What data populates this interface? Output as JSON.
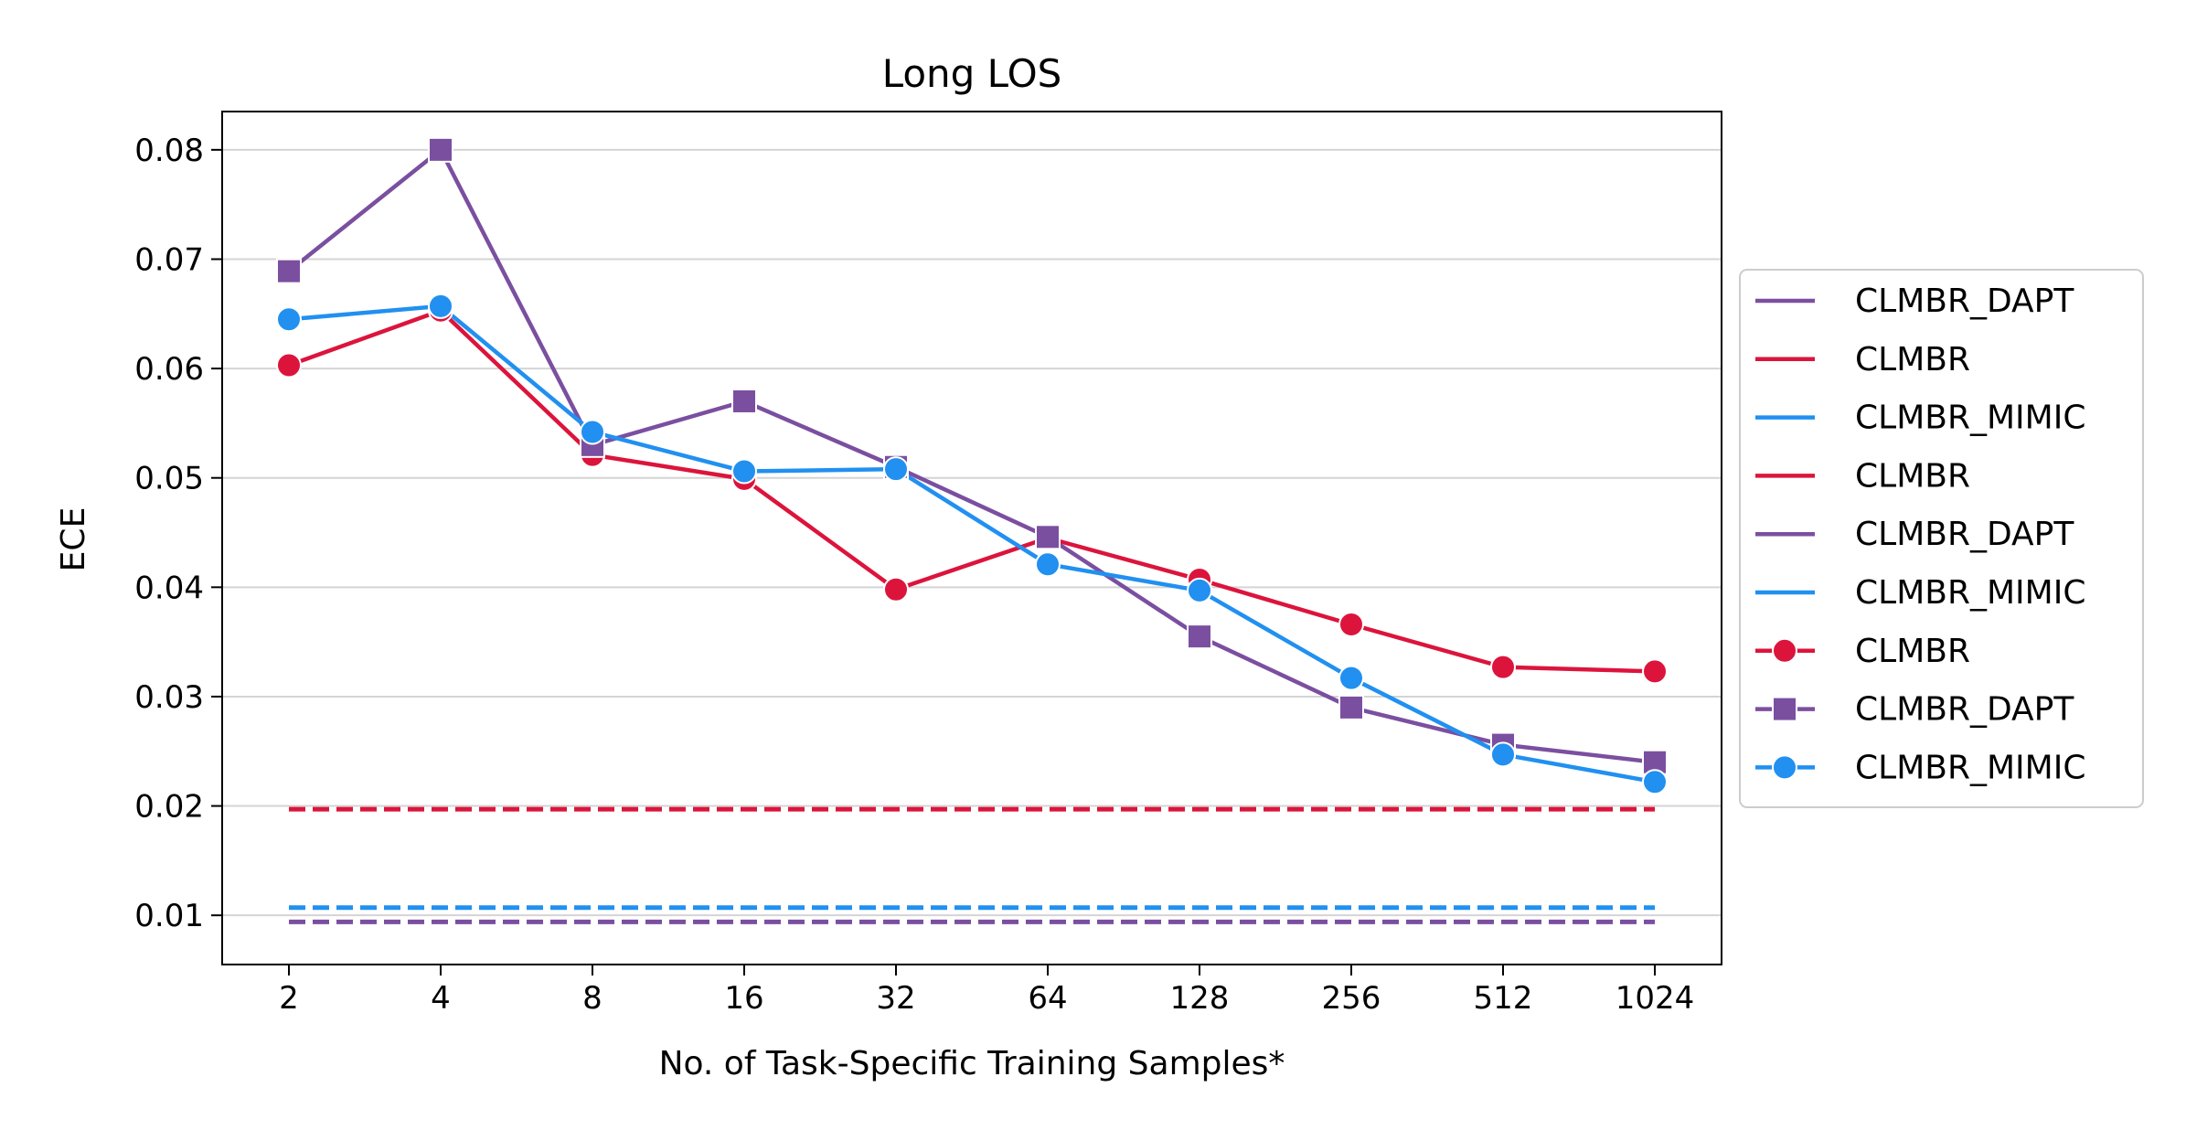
{
  "chart_data": {
    "type": "line",
    "title": "Long LOS",
    "xlabel": "No. of Task-Specific Training Samples*",
    "ylabel": "ECE",
    "x": [
      "2",
      "4",
      "8",
      "16",
      "32",
      "64",
      "128",
      "256",
      "512",
      "1024"
    ],
    "ylim": [
      0.0055,
      0.0835
    ],
    "yticks": [
      0.01,
      0.02,
      0.03,
      0.04,
      0.05,
      0.06,
      0.07,
      0.08
    ],
    "ytick_labels": [
      "0.01",
      "0.02",
      "0.03",
      "0.04",
      "0.05",
      "0.06",
      "0.07",
      "0.08"
    ],
    "grid": "horizontal",
    "legend_position": "outside-right",
    "colors": {
      "CLMBR": "#dc143c",
      "CLMBR_DAPT": "#7b4fa0",
      "CLMBR_MIMIC": "#2190f0"
    },
    "baselines": [
      {
        "name": "CLMBR_DAPT",
        "value": 0.0094
      },
      {
        "name": "CLMBR",
        "value": 0.0197
      },
      {
        "name": "CLMBR_MIMIC",
        "value": 0.0107
      }
    ],
    "series": [
      {
        "name": "CLMBR",
        "marker": "circle",
        "values": [
          0.0603,
          0.0653,
          0.0521,
          0.0499,
          0.0398,
          0.0445,
          0.0407,
          0.0366,
          0.0327,
          0.0323
        ]
      },
      {
        "name": "CLMBR_DAPT",
        "marker": "square",
        "values": [
          0.0689,
          0.08,
          0.053,
          0.057,
          0.051,
          0.0446,
          0.0355,
          0.029,
          0.0256,
          0.024
        ]
      },
      {
        "name": "CLMBR_MIMIC",
        "marker": "circle",
        "values": [
          0.0645,
          0.0657,
          0.0542,
          0.0506,
          0.0508,
          0.0421,
          0.0397,
          0.0317,
          0.0247,
          0.0222
        ]
      }
    ],
    "legend": [
      {
        "label": "CLMBR_DAPT",
        "style": "line",
        "color_key": "CLMBR_DAPT"
      },
      {
        "label": "CLMBR",
        "style": "line",
        "color_key": "CLMBR"
      },
      {
        "label": "CLMBR_MIMIC",
        "style": "line",
        "color_key": "CLMBR_MIMIC"
      },
      {
        "label": "CLMBR",
        "style": "line",
        "color_key": "CLMBR"
      },
      {
        "label": "CLMBR_DAPT",
        "style": "line",
        "color_key": "CLMBR_DAPT"
      },
      {
        "label": "CLMBR_MIMIC",
        "style": "line",
        "color_key": "CLMBR_MIMIC"
      },
      {
        "label": "CLMBR",
        "style": "circle",
        "color_key": "CLMBR"
      },
      {
        "label": "CLMBR_DAPT",
        "style": "square",
        "color_key": "CLMBR_DAPT"
      },
      {
        "label": "CLMBR_MIMIC",
        "style": "circle",
        "color_key": "CLMBR_MIMIC"
      }
    ]
  }
}
